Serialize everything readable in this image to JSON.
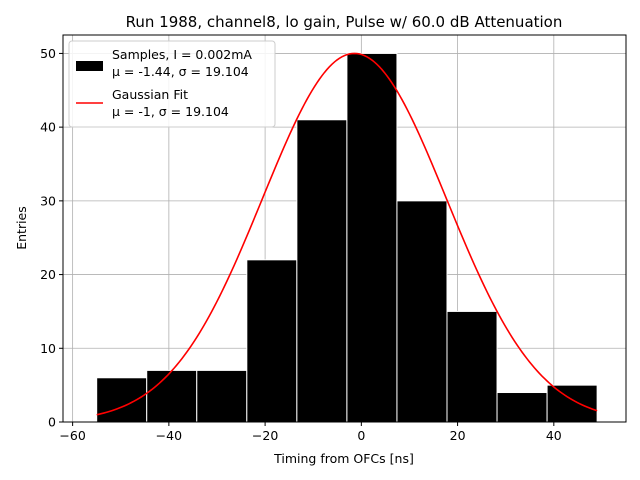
{
  "chart_data": {
    "type": "bar",
    "title": "Run 1988, channel8, lo gain, Pulse w/ 60.0 dB Attenuation",
    "xlabel": "Timing from OFCs [ns]",
    "ylabel": "Entries",
    "xlim": [
      -62,
      55
    ],
    "ylim": [
      0,
      52.5
    ],
    "grid": true,
    "legend_position": "top-left",
    "x_ticks": [
      -60,
      -40,
      -20,
      0,
      20,
      40
    ],
    "x_tick_labels": [
      "−60",
      "−40",
      "−20",
      "0",
      "20",
      "40"
    ],
    "y_ticks": [
      0,
      10,
      20,
      30,
      40,
      50
    ],
    "y_tick_labels": [
      "0",
      "10",
      "20",
      "30",
      "40",
      "50"
    ],
    "histogram": {
      "name": "Samples, I = 0.002mA",
      "stats": "μ = -1.44, σ = 19.104",
      "color": "#000000",
      "edge_color": "#ffffff",
      "bins": [
        {
          "x0": -55.0,
          "x1": -44.6,
          "value": 6
        },
        {
          "x0": -44.6,
          "x1": -34.2,
          "value": 7
        },
        {
          "x0": -34.2,
          "x1": -23.8,
          "value": 7
        },
        {
          "x0": -23.8,
          "x1": -13.4,
          "value": 22
        },
        {
          "x0": -13.4,
          "x1": -3.0,
          "value": 41
        },
        {
          "x0": -3.0,
          "x1": 7.4,
          "value": 50
        },
        {
          "x0": 7.4,
          "x1": 17.8,
          "value": 30
        },
        {
          "x0": 17.8,
          "x1": 28.2,
          "value": 15
        },
        {
          "x0": 28.2,
          "x1": 38.6,
          "value": 4
        },
        {
          "x0": 38.6,
          "x1": 49.0,
          "value": 5
        }
      ]
    },
    "fit": {
      "name": "Gaussian Fit",
      "stats": "μ = -1, σ = 19.104",
      "color": "#ff0000",
      "amplitude": 50,
      "mu": -1.44,
      "sigma": 19.104,
      "x_range": [
        -55,
        49
      ]
    }
  }
}
